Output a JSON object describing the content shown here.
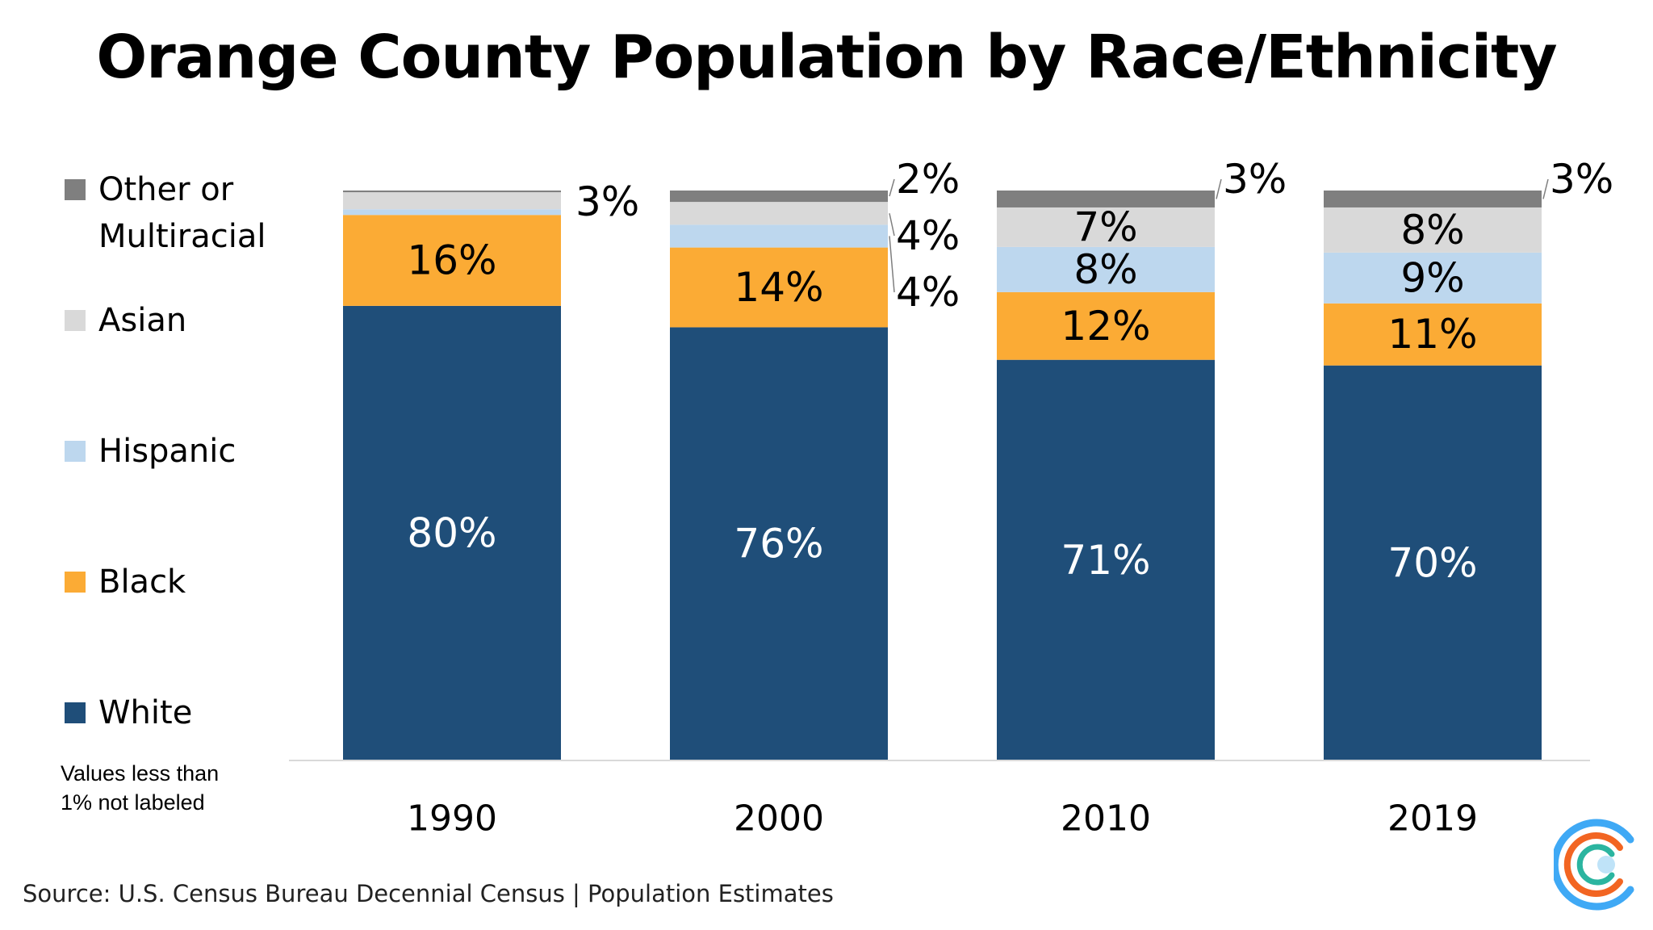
{
  "title": "Orange County Population by Race/Ethnicity",
  "note": "Values less than\n1% not labeled",
  "source": "Source: U.S. Census Bureau Decennial Census | Population Estimates",
  "legend": [
    {
      "label": "Other or\nMultiracial",
      "color": "#7f7f7f"
    },
    {
      "label": "Asian",
      "color": "#d9d9d9"
    },
    {
      "label": "Hispanic",
      "color": "#bdd7ee"
    },
    {
      "label": "Black",
      "color": "#fbab35"
    },
    {
      "label": "White",
      "color": "#1f4e79"
    }
  ],
  "chart_data": {
    "type": "bar",
    "stacked": true,
    "categories": [
      "1990",
      "2000",
      "2010",
      "2019"
    ],
    "ylim": [
      0,
      100
    ],
    "grid": false,
    "legend_position": "left",
    "series": [
      {
        "name": "White",
        "color": "#1f4e79",
        "values": [
          80,
          76,
          71,
          70
        ],
        "labels": [
          "80%",
          "76%",
          "71%",
          "70%"
        ],
        "label_position": "inside",
        "label_color": "#ffffff"
      },
      {
        "name": "Black",
        "color": "#fbab35",
        "values": [
          16,
          14,
          12,
          11
        ],
        "labels": [
          "16%",
          "14%",
          "12%",
          "11%"
        ],
        "label_position": "inside",
        "label_color": "#000000"
      },
      {
        "name": "Hispanic",
        "color": "#bdd7ee",
        "values": [
          1,
          4,
          8,
          9
        ],
        "labels": [
          "",
          "4%",
          "8%",
          "9%"
        ],
        "label_position": [
          "none",
          "outside",
          "inside",
          "inside"
        ],
        "label_color": "#000000"
      },
      {
        "name": "Asian",
        "color": "#d9d9d9",
        "values": [
          3,
          4,
          7,
          8
        ],
        "labels": [
          "3%",
          "4%",
          "7%",
          "8%"
        ],
        "label_position": [
          "outside",
          "outside",
          "inside",
          "inside"
        ],
        "label_color": "#000000"
      },
      {
        "name": "Other or Multiracial",
        "color": "#7f7f7f",
        "values": [
          0.3,
          2,
          3,
          3
        ],
        "labels": [
          "",
          "2%",
          "3%",
          "3%"
        ],
        "label_position": [
          "none",
          "outside",
          "outside",
          "outside"
        ],
        "label_color": "#000000"
      }
    ]
  },
  "logo": {
    "colors": [
      "#3fa9f5",
      "#f26522",
      "#2bb5a0",
      "#8dc63f"
    ],
    "icon": "circle-logo-icon"
  }
}
